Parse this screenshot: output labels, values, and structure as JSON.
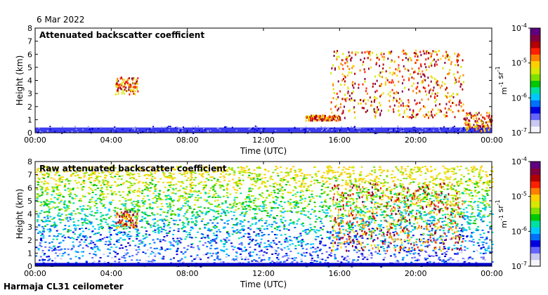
{
  "date": "6 Mar 2022",
  "footer": "Harmaja CL31 ceilometer",
  "chart_data": [
    {
      "type": "heatmap",
      "title": "Attenuated backscatter coefficient",
      "xlabel": "Time (UTC)",
      "ylabel": "Height (km)",
      "x_ticks": [
        "00:00",
        "04:00",
        "08:00",
        "12:00",
        "16:00",
        "20:00",
        "00:00"
      ],
      "y_ticks": [
        0,
        1,
        2,
        3,
        4,
        5,
        6,
        7,
        8
      ],
      "xlim_hours": [
        0,
        24
      ],
      "ylim_km": [
        0,
        8
      ],
      "features": [
        {
          "kind": "boundary_layer",
          "t_start_h": 0,
          "t_end_h": 24,
          "h_top_km": 0.4
        },
        {
          "kind": "cloud",
          "t_start_h": 4.2,
          "t_end_h": 5.4,
          "h_bottom_km": 3.0,
          "h_top_km": 4.3
        },
        {
          "kind": "cloud",
          "t_start_h": 14.2,
          "t_end_h": 16.0,
          "h_bottom_km": 1.0,
          "h_top_km": 1.4
        },
        {
          "kind": "cloud",
          "t_start_h": 15.5,
          "t_end_h": 22.5,
          "h_bottom_km": 1.2,
          "h_top_km": 6.4
        },
        {
          "kind": "cloud",
          "t_start_h": 22.5,
          "t_end_h": 24,
          "h_bottom_km": 0.2,
          "h_top_km": 1.6
        }
      ],
      "colorbar": {
        "labels": [
          "10-4",
          "10-5",
          "10-6",
          "10-7"
        ],
        "unit": "m-1 sr-1"
      }
    },
    {
      "type": "heatmap",
      "title": "Raw attenuated backscatter coefficient",
      "xlabel": "Time (UTC)",
      "ylabel": "Height (km)",
      "x_ticks": [
        "00:00",
        "04:00",
        "08:00",
        "12:00",
        "16:00",
        "20:00",
        "00:00"
      ],
      "y_ticks": [
        0,
        1,
        2,
        3,
        4,
        5,
        6,
        7,
        8
      ],
      "xlim_hours": [
        0,
        24
      ],
      "ylim_km": [
        0,
        8
      ],
      "features": [
        {
          "kind": "noise",
          "t_start_h": 0,
          "t_end_h": 24,
          "h_bottom_km": 0,
          "h_top_km": 7.7
        },
        {
          "kind": "cloud",
          "t_start_h": 4.2,
          "t_end_h": 5.4,
          "h_bottom_km": 3.0,
          "h_top_km": 4.3
        },
        {
          "kind": "cloud",
          "t_start_h": 15.5,
          "t_end_h": 22.5,
          "h_bottom_km": 1.2,
          "h_top_km": 6.4
        }
      ],
      "colorbar": {
        "labels": [
          "10-4",
          "10-5",
          "10-6",
          "10-7"
        ],
        "unit": "m-1 sr-1"
      }
    }
  ]
}
